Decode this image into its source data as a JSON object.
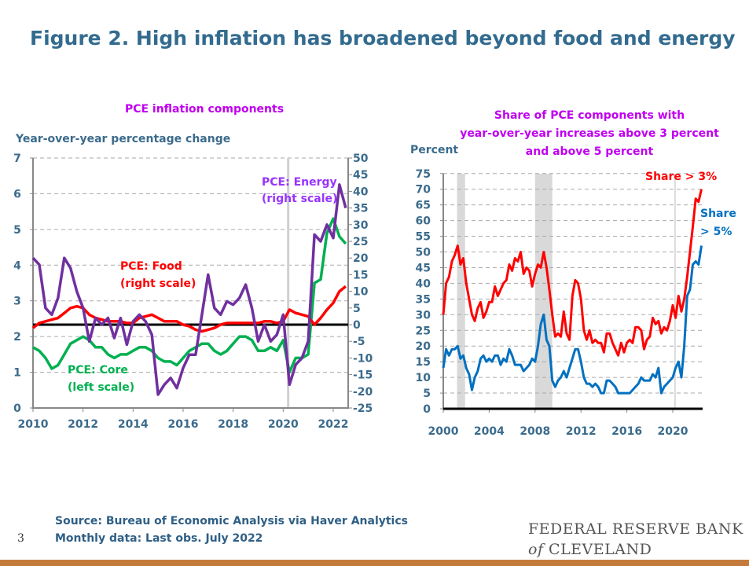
{
  "title": "Figure 2. High inflation has broadened beyond food and energy",
  "page_number": "3",
  "source": [
    "Source: Bureau of Economic Analysis via Haver Analytics",
    "Monthly data: Last obs. July 2022"
  ],
  "logo": [
    "FEDERAL RESERVE BANK",
    "of CLEVELAND"
  ],
  "chart_data": [
    {
      "type": "line",
      "title": "PCE inflation components",
      "ylabel": "Year-over-year percentage change",
      "xlim": [
        2010,
        2022.5
      ],
      "ylim_left": [
        0,
        7
      ],
      "ylim_right": [
        -25,
        50
      ],
      "x_ticks": [
        "2010",
        "2012",
        "2014",
        "2016",
        "2018",
        "2020",
        "2022"
      ],
      "y_ticks_left": [
        "0",
        "1",
        "2",
        "3",
        "4",
        "5",
        "6",
        "7"
      ],
      "y_ticks_right": [
        "-25",
        "-20",
        "-15",
        "-10",
        "-5",
        "0",
        "5",
        "10",
        "15",
        "20",
        "25",
        "30",
        "35",
        "40",
        "45",
        "50"
      ],
      "grid": "horizontal dashed",
      "recession_lines": [
        2020.2
      ],
      "x_start": 2010,
      "x_step": 0.25,
      "series": [
        {
          "name": "PCE: Core",
          "label2": "(left scale)",
          "axis": "left",
          "color": "#00b050",
          "values": [
            1.7,
            1.6,
            1.4,
            1.1,
            1.2,
            1.5,
            1.8,
            1.9,
            2.0,
            1.9,
            1.7,
            1.7,
            1.5,
            1.4,
            1.5,
            1.5,
            1.6,
            1.7,
            1.7,
            1.6,
            1.4,
            1.3,
            1.3,
            1.2,
            1.4,
            1.6,
            1.7,
            1.8,
            1.8,
            1.6,
            1.5,
            1.6,
            1.8,
            2.0,
            2.0,
            1.9,
            1.6,
            1.6,
            1.7,
            1.6,
            1.9,
            1.0,
            1.4,
            1.4,
            1.5,
            3.5,
            3.6,
            4.9,
            5.3,
            4.8,
            4.6
          ]
        },
        {
          "name": "PCE: Food",
          "label2": "(right scale)",
          "axis": "right",
          "color": "#ff0000",
          "values": [
            -1,
            0.5,
            1,
            1.5,
            2,
            3.5,
            5,
            5.5,
            5,
            3,
            2,
            1.5,
            1,
            1,
            1,
            0.5,
            0.5,
            2,
            2.5,
            3,
            2,
            1,
            1,
            1,
            0,
            -0.5,
            -1.5,
            -2,
            -1.5,
            -1,
            0,
            0.5,
            0.5,
            0.5,
            0.5,
            0.5,
            0.5,
            1,
            1,
            0.5,
            1,
            4.5,
            3.5,
            3,
            2.5,
            0,
            2,
            4.5,
            6.5,
            10,
            11.5
          ]
        },
        {
          "name": "PCE: Energy",
          "label2": "(right scale)",
          "axis": "right",
          "color": "#7030a0",
          "values": [
            20,
            18,
            5,
            3,
            8,
            20,
            17,
            10,
            5,
            -5,
            2,
            0,
            2,
            -4,
            2,
            -6,
            1,
            3,
            1,
            -3,
            -21,
            -18,
            -16,
            -19,
            -13,
            -9,
            -9,
            3,
            15,
            5,
            3,
            7,
            6,
            8,
            12,
            5,
            -5,
            0,
            -5,
            -3,
            3,
            -18,
            -12,
            -10,
            -5,
            27,
            25,
            30,
            26,
            42,
            35
          ]
        }
      ]
    },
    {
      "type": "line",
      "title": [
        "Share of PCE components with",
        "year-over-year increases above 3 percent",
        "and above 5 percent"
      ],
      "ylabel": "Percent",
      "xlim": [
        2000,
        2022.5
      ],
      "ylim": [
        0,
        75
      ],
      "x_ticks": [
        "2000",
        "2004",
        "2008",
        "2012",
        "2016",
        "2020"
      ],
      "y_ticks": [
        "0",
        "5",
        "10",
        "15",
        "20",
        "25",
        "30",
        "35",
        "40",
        "45",
        "50",
        "55",
        "60",
        "65",
        "70",
        "75"
      ],
      "grid": "horizontal dashed",
      "recessions": [
        [
          2001.2,
          2001.9
        ],
        [
          2008,
          2009.5
        ]
      ],
      "recession_lines": [
        2020.2
      ],
      "x_start": 2000,
      "x_step": 0.25,
      "series": [
        {
          "name": "Share > 3%",
          "color": "#ff0000",
          "values": [
            30,
            40,
            42,
            47,
            49,
            52,
            46,
            48,
            40,
            35,
            30,
            28,
            32,
            34,
            29,
            31,
            34,
            34,
            39,
            36,
            38,
            40,
            41,
            46,
            44,
            48,
            47,
            50,
            43,
            45,
            44,
            39,
            43,
            46,
            45,
            50,
            45,
            38,
            30,
            23,
            24,
            23,
            31,
            24,
            22,
            36,
            41,
            40,
            35,
            25,
            22,
            25,
            21,
            22,
            21,
            21,
            18,
            24,
            24,
            21,
            19,
            17,
            21,
            18,
            21,
            22,
            21,
            26,
            26,
            25,
            19,
            22,
            23,
            29,
            27,
            28,
            24,
            26,
            25,
            28,
            33,
            29,
            36,
            31,
            35,
            42,
            50,
            58,
            67,
            66,
            70
          ]
        },
        {
          "name": "Share > 5%",
          "name_lines": [
            "Share",
            "> 5%"
          ],
          "color": "#0070c0",
          "values": [
            13,
            19,
            17,
            19,
            19,
            20,
            16,
            17,
            13,
            11,
            6,
            10,
            12,
            16,
            17,
            15,
            16,
            15,
            17,
            17,
            14,
            16,
            15,
            19,
            17,
            14,
            14,
            14,
            12,
            13,
            14,
            16,
            15,
            20,
            27,
            30,
            22,
            20,
            9,
            7,
            9,
            10,
            12,
            10,
            13,
            16,
            19,
            19,
            15,
            10,
            8,
            8,
            7,
            8,
            7,
            5,
            5,
            9,
            9,
            8,
            7,
            5,
            5,
            5,
            5,
            5,
            6,
            7,
            8,
            10,
            9,
            9,
            9,
            11,
            10,
            13,
            5,
            7,
            8,
            9,
            10,
            13,
            15,
            10,
            20,
            36,
            38,
            46,
            47,
            46,
            52
          ]
        }
      ]
    }
  ]
}
